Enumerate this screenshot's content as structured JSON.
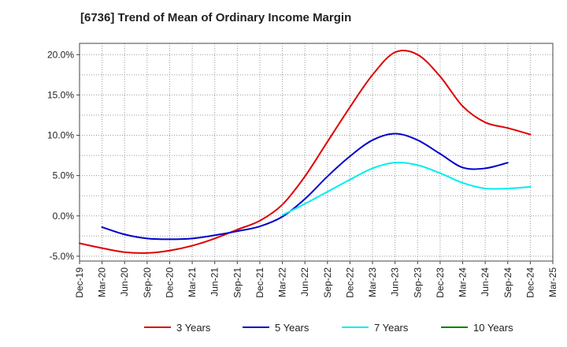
{
  "chart_data": {
    "type": "line",
    "title": "[6736]  Trend of Mean of Ordinary Income Margin",
    "xlabel": "",
    "ylabel": "",
    "x_ticks": [
      "Dec-19",
      "Mar-20",
      "Jun-20",
      "Sep-20",
      "Dec-20",
      "Mar-21",
      "Jun-21",
      "Sep-21",
      "Dec-21",
      "Mar-22",
      "Jun-22",
      "Sep-22",
      "Dec-22",
      "Mar-23",
      "Jun-23",
      "Sep-23",
      "Dec-23",
      "Mar-24",
      "Jun-24",
      "Sep-24",
      "Dec-24",
      "Mar-25"
    ],
    "y_ticks": [
      "-5.0%",
      "0.0%",
      "5.0%",
      "10.0%",
      "15.0%",
      "20.0%"
    ],
    "y_tick_values": [
      -5,
      0,
      5,
      10,
      15,
      20
    ],
    "ylim": [
      -5.6,
      21.4
    ],
    "grid": true,
    "legend_position": "bottom",
    "series": [
      {
        "name": "3 Years",
        "color": "#dd0000",
        "start_index": 0,
        "values": [
          -3.4,
          -4.0,
          -4.5,
          -4.6,
          -4.3,
          -3.7,
          -2.8,
          -1.7,
          -0.6,
          1.4,
          4.9,
          9.2,
          13.5,
          17.5,
          20.3,
          20.0,
          17.3,
          13.6,
          11.6,
          10.9,
          10.1
        ]
      },
      {
        "name": "5 Years",
        "color": "#0000cc",
        "start_index": 1,
        "values": [
          -1.4,
          -2.3,
          -2.8,
          -2.9,
          -2.8,
          -2.4,
          -1.9,
          -1.3,
          -0.1,
          2.1,
          4.9,
          7.4,
          9.4,
          10.2,
          9.4,
          7.7,
          6.0,
          5.9,
          6.6
        ]
      },
      {
        "name": "7 Years",
        "color": "#00eeee",
        "start_index": 9,
        "values": [
          0.1,
          1.5,
          3.0,
          4.5,
          5.9,
          6.6,
          6.3,
          5.3,
          4.1,
          3.4,
          3.4,
          3.6
        ]
      },
      {
        "name": "10 Years",
        "color": "#008000",
        "start_index": 0,
        "values": []
      }
    ]
  }
}
